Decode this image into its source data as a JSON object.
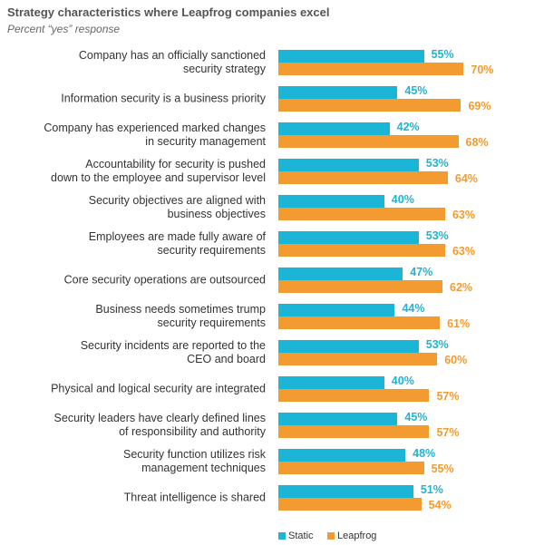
{
  "chart_data": {
    "type": "bar",
    "orientation": "horizontal",
    "title": "Strategy characteristics where Leapfrog companies excel",
    "subtitle": "Percent “yes” response",
    "categories": [
      "Company has an officially sanctioned\nsecurity strategy",
      "Information security is a business priority",
      "Company has experienced marked changes\nin security management",
      "Accountability for security is pushed\ndown to the employee and supervisor level",
      "Security objectives are aligned with\nbusiness objectives",
      "Employees are made fully aware of\nsecurity requirements",
      "Core security operations are outsourced",
      "Business needs sometimes trump\nsecurity requirements",
      "Security incidents are reported to the\nCEO and board",
      "Physical and logical security are integrated",
      "Security leaders have clearly defined lines\nof responsibility and authority",
      "Security function utilizes risk\nmanagement techniques",
      "Threat intelligence is shared"
    ],
    "series": [
      {
        "name": "Static",
        "color": "#1bb5d8",
        "values": [
          55,
          45,
          42,
          53,
          40,
          53,
          47,
          44,
          53,
          40,
          45,
          48,
          51
        ],
        "value_labels": [
          "55%",
          "45%",
          "42%",
          "53%",
          "40%",
          "53%",
          "47%",
          "44%",
          "53%",
          "40%",
          "45%",
          "48%",
          "51%"
        ]
      },
      {
        "name": "Leapfrog",
        "color": "#f39a31",
        "values": [
          70,
          69,
          68,
          64,
          63,
          63,
          62,
          61,
          60,
          57,
          57,
          55,
          54
        ],
        "value_labels": [
          "70%",
          "69%",
          "68%",
          "64%",
          "63%",
          "63%",
          "62%",
          "61%",
          "60%",
          "57%",
          "57%",
          "55%",
          "54%"
        ]
      }
    ],
    "legend": "bottom"
  }
}
